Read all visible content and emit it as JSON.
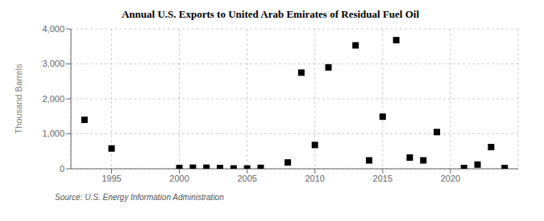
{
  "chart_data": {
    "type": "scatter",
    "title": "Annual U.S. Exports to United Arab Emirates of Residual Fuel Oil",
    "y_label": "Thousand Barrels",
    "annotations": [
      "Source: U.S. Energy Information Administration"
    ],
    "marker": "square",
    "grid": true,
    "xlim": [
      1992,
      2025
    ],
    "ylim": [
      0,
      4000
    ],
    "xticks": [
      1995,
      2000,
      2005,
      2010,
      2015,
      2020
    ],
    "yticks": [
      0,
      {
        "value": 1000,
        "label": "1,000"
      },
      {
        "value": 2000,
        "label": "2,000"
      },
      {
        "value": 3000,
        "label": "3,000"
      },
      {
        "value": 4000,
        "label": "4,000"
      }
    ],
    "x": [
      1993,
      1995,
      2000,
      2001,
      2002,
      2003,
      2004,
      2005,
      2006,
      2008,
      2009,
      2010,
      2011,
      2013,
      2014,
      2015,
      2016,
      2017,
      2018,
      2019,
      2021,
      2022,
      2023,
      2024
    ],
    "values": [
      1400,
      580,
      20,
      30,
      30,
      20,
      10,
      10,
      25,
      180,
      2750,
      680,
      2900,
      3530,
      240,
      1490,
      3680,
      320,
      240,
      1050,
      20,
      120,
      620,
      20
    ]
  }
}
